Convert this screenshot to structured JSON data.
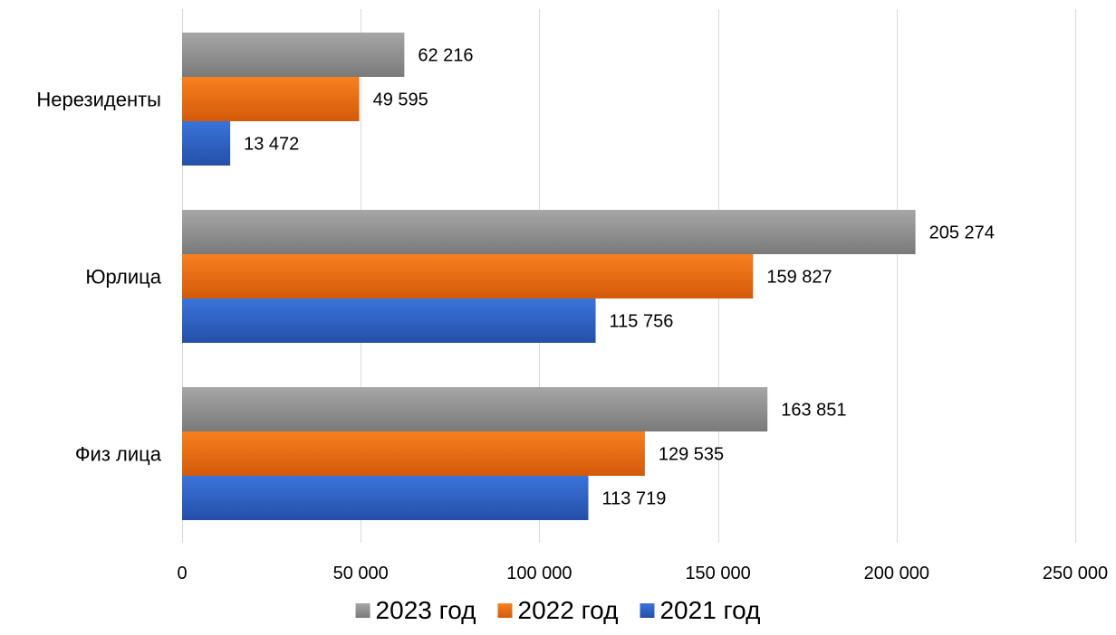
{
  "chart_data": {
    "type": "bar",
    "orientation": "horizontal",
    "categories": [
      "Нерезиденты",
      "Юрлица",
      "Физ лица"
    ],
    "series": [
      {
        "name": "2023 год",
        "color": "#8c8c8c",
        "values": [
          62216,
          205274,
          163851
        ],
        "labels": [
          "62 216",
          "205 274",
          "163 851"
        ]
      },
      {
        "name": "2022 год",
        "color": "#ed6a12",
        "values": [
          49595,
          159827,
          129535
        ],
        "labels": [
          "49 595",
          "159 827",
          "129 535"
        ]
      },
      {
        "name": "2021 год",
        "color": "#2f62c7",
        "values": [
          13472,
          115756,
          113719
        ],
        "labels": [
          "13 472",
          "115 756",
          "113 719"
        ]
      }
    ],
    "xlim": [
      0,
      250000
    ],
    "xticks": [
      0,
      50000,
      100000,
      150000,
      200000,
      250000
    ],
    "xtick_labels": [
      "0",
      "50 000",
      "100 000",
      "150 000",
      "200 000",
      "250 000"
    ],
    "title": "",
    "xlabel": "",
    "ylabel": "",
    "grid": "vertical",
    "legend_position": "bottom"
  }
}
